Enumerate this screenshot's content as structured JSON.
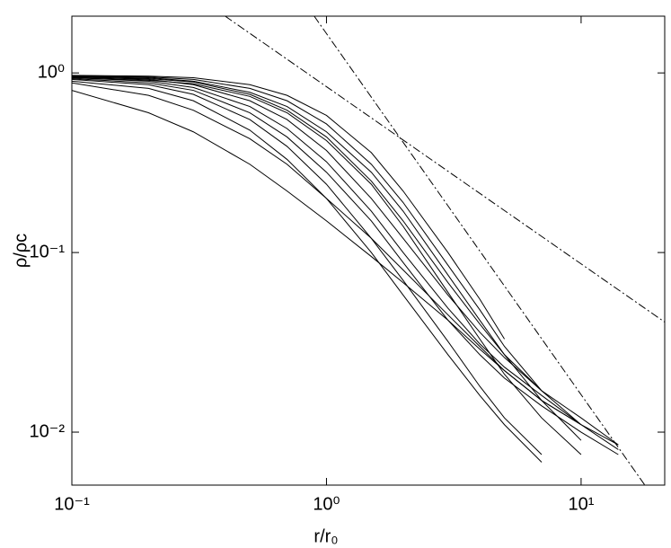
{
  "chart_data": {
    "type": "line",
    "xlabel": "r/r₀",
    "ylabel": "ρ/ρc",
    "log_x": true,
    "log_y": true,
    "xlim": [
      0.1,
      21.3
    ],
    "ylim": [
      0.00507,
      2.07
    ],
    "xticks": [
      {
        "value": 0.1,
        "label": "10⁻¹"
      },
      {
        "value": 1,
        "label": "10⁰"
      },
      {
        "value": 10,
        "label": "10¹"
      }
    ],
    "yticks": [
      {
        "value": 0.01,
        "label": "10⁻²"
      },
      {
        "value": 0.1,
        "label": "10⁻¹"
      },
      {
        "value": 1,
        "label": "10⁰"
      }
    ],
    "x": [
      0.1,
      0.2,
      0.3,
      0.5,
      0.7,
      1,
      1.5,
      2,
      3,
      4,
      5,
      7,
      10,
      14
    ],
    "series": [
      {
        "color": "#000000",
        "values": [
          0.97,
          0.96,
          0.94,
          0.86,
          0.75,
          0.58,
          0.36,
          0.22,
          0.1,
          0.055,
          0.033,
          null,
          null,
          null
        ]
      },
      {
        "color": "#000000",
        "values": [
          0.96,
          0.95,
          0.92,
          0.82,
          0.7,
          0.52,
          0.31,
          0.19,
          0.085,
          0.048,
          0.03,
          0.017,
          null,
          null
        ]
      },
      {
        "color": "#000000",
        "values": [
          0.96,
          0.94,
          0.9,
          0.78,
          0.65,
          0.47,
          0.28,
          0.17,
          0.075,
          0.042,
          0.027,
          0.015,
          0.009,
          null
        ]
      },
      {
        "color": "#000000",
        "values": [
          0.95,
          0.93,
          0.89,
          0.76,
          0.62,
          0.44,
          0.25,
          0.15,
          0.068,
          0.04,
          0.027,
          0.017,
          0.011,
          null
        ]
      },
      {
        "color": "#000000",
        "values": [
          0.95,
          0.92,
          0.86,
          0.7,
          0.55,
          0.37,
          0.2,
          0.12,
          0.058,
          0.036,
          0.026,
          0.017,
          0.012,
          0.0085
        ]
      },
      {
        "color": "#000000",
        "values": [
          0.94,
          0.91,
          0.87,
          0.74,
          0.6,
          0.42,
          0.24,
          0.14,
          0.06,
          0.033,
          0.021,
          0.012,
          0.0075,
          null
        ]
      },
      {
        "color": "#000000",
        "values": [
          0.94,
          0.9,
          0.83,
          0.65,
          0.49,
          0.32,
          0.17,
          0.1,
          0.049,
          0.031,
          0.023,
          0.016,
          0.011,
          0.008
        ]
      },
      {
        "color": "#000000",
        "values": [
          0.93,
          0.88,
          0.8,
          0.6,
          0.44,
          0.28,
          0.15,
          0.088,
          0.042,
          0.027,
          0.02,
          0.014,
          0.01,
          0.0075
        ]
      },
      {
        "color": "#000000",
        "values": [
          0.92,
          0.86,
          0.76,
          0.55,
          0.39,
          0.24,
          0.12,
          0.07,
          0.032,
          0.018,
          0.012,
          0.0075,
          null,
          null
        ]
      },
      {
        "color": "#000000",
        "values": [
          0.9,
          0.82,
          0.7,
          0.48,
          0.33,
          0.2,
          0.1,
          0.058,
          0.027,
          0.016,
          0.011,
          0.0068,
          null,
          null
        ]
      },
      {
        "color": "#000000",
        "values": [
          0.88,
          0.75,
          0.62,
          0.43,
          0.31,
          0.2,
          0.12,
          0.08,
          0.045,
          0.03,
          0.022,
          0.015,
          0.011,
          0.0085
        ]
      },
      {
        "color": "#000000",
        "values": [
          0.8,
          0.6,
          0.47,
          0.31,
          0.22,
          0.15,
          0.095,
          0.068,
          0.042,
          0.029,
          0.022,
          0.015,
          0.011,
          null
        ]
      }
    ],
    "reference_lines": [
      {
        "color": "#000000",
        "line_style": "dashdot",
        "x": [
          0.4,
          21.3
        ],
        "values": [
          2.07,
          0.041
        ]
      },
      {
        "color": "#000000",
        "line_style": "dashdot",
        "x": [
          0.895,
          17.8
        ],
        "values": [
          2.07,
          0.00507
        ]
      }
    ]
  }
}
